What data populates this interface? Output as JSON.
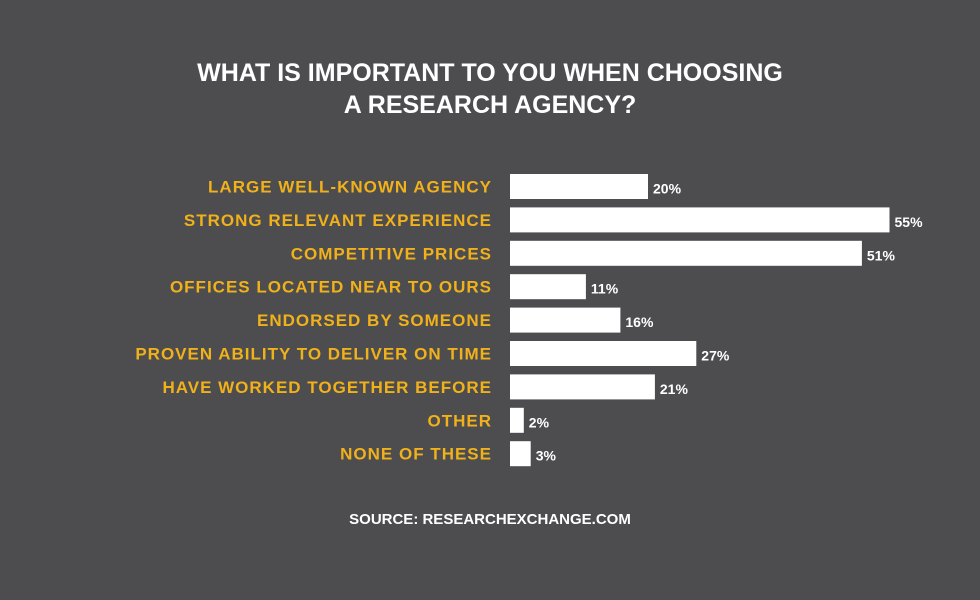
{
  "colors": {
    "background": "#4d4d4f",
    "label": "#f0b11b",
    "bar": "#ffffff",
    "text": "#ffffff"
  },
  "title_line1": "WHAT IS IMPORTANT TO YOU WHEN CHOOSING",
  "title_line2": "A RESEARCH AGENCY?",
  "source": "SOURCE: RESEARCHEXCHANGE.COM",
  "chart_data": {
    "type": "bar",
    "orientation": "horizontal",
    "title": "WHAT IS IMPORTANT TO YOU WHEN CHOOSING A RESEARCH AGENCY?",
    "categories": [
      "LARGE WELL-KNOWN AGENCY",
      "STRONG RELEVANT EXPERIENCE",
      "COMPETITIVE PRICES",
      "OFFICES LOCATED NEAR TO OURS",
      "ENDORSED BY SOMEONE",
      "PROVEN ABILITY TO DELIVER ON TIME",
      "HAVE WORKED TOGETHER BEFORE",
      "OTHER",
      "NONE OF THESE"
    ],
    "values": [
      20,
      55,
      51,
      11,
      16,
      27,
      21,
      2,
      3
    ],
    "data_labels": [
      "20%",
      "55%",
      "51%",
      "11%",
      "16%",
      "27%",
      "21%",
      "2%",
      "3%"
    ],
    "unit": "%",
    "xlim": [
      0,
      55
    ],
    "grid": false,
    "legend": "none"
  }
}
